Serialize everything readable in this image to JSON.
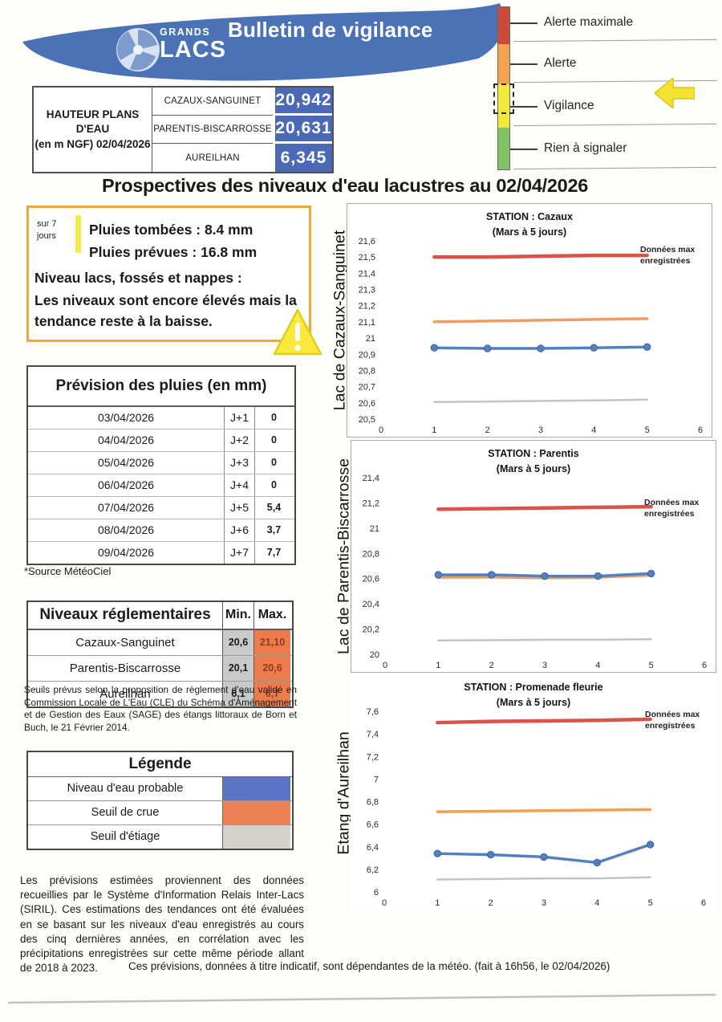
{
  "header": {
    "logo_line1": "GRANDS",
    "logo_line2": "LACS",
    "title": "Bulletin de vigilance"
  },
  "alert_scale": {
    "levels": [
      {
        "label": "Alerte maximale",
        "color": "#cf4938"
      },
      {
        "label": "Alerte",
        "color": "#f2a44e"
      },
      {
        "label": "Vigilance",
        "color": "#f2e83c"
      },
      {
        "label": "Rien à signaler",
        "color": "#82c164"
      }
    ],
    "current_level": "Vigilance",
    "arrow_color": "#f6e232"
  },
  "water_levels": {
    "header_line1": "HAUTEUR PLANS D'EAU",
    "header_line2": "(en m NGF) 02/04/2026",
    "value_bg_color": "#4b69b5",
    "rows": [
      {
        "name": "CAZAUX-SANGUINET",
        "value": "20,942"
      },
      {
        "name": "PARENTIS-BISCARROSSE",
        "value": "20,631"
      },
      {
        "name": "AUREILHAN",
        "value": "6,345"
      }
    ]
  },
  "main_title": "Prospectives des niveaux d'eau lacustres au 02/04/2026",
  "summary_box": {
    "period_line1": "sur 7",
    "period_line2": "jours",
    "rain_fallen_label": "Pluies tombées :",
    "rain_fallen_value": "8.4 mm",
    "rain_forecast_label": "Pluies prévues :",
    "rain_forecast_value": "16.8 mm",
    "levels_label": "Niveau lacs, fossés et nappes :",
    "levels_text": "Les niveaux sont encore élevés mais la tendance reste à la baisse."
  },
  "rain_forecast": {
    "title": "Prévision des pluies (en mm)",
    "rows": [
      {
        "date": "03/04/2026",
        "day": "J+1",
        "value": "0"
      },
      {
        "date": "04/04/2026",
        "day": "J+2",
        "value": "0"
      },
      {
        "date": "05/04/2026",
        "day": "J+3",
        "value": "0"
      },
      {
        "date": "06/04/2026",
        "day": "J+4",
        "value": "0"
      },
      {
        "date": "07/04/2026",
        "day": "J+5",
        "value": "5,4"
      },
      {
        "date": "08/04/2026",
        "day": "J+6",
        "value": "3,7"
      },
      {
        "date": "09/04/2026",
        "day": "J+7",
        "value": "7,7"
      }
    ],
    "source": "*Source MétéoCiel"
  },
  "regulatory_levels": {
    "title": "Niveaux réglementaires",
    "col_min": "Min.",
    "col_max": "Max.",
    "min_bg_color": "#c9c9c9",
    "max_bg_color": "#ec7c4b",
    "rows": [
      {
        "name": "Cazaux-Sanguinet",
        "min": "20,6",
        "max": "21,10"
      },
      {
        "name": "Parentis-Biscarrosse",
        "min": "20,1",
        "max": "20,6"
      },
      {
        "name": "Aureilhan",
        "min": "6,1",
        "max": "6,7"
      }
    ],
    "note": "Seuils prévus selon la proposition de règlement d'eau validé en Commission Locale de L'Eau (CLE) du Schéma d'Aménagement et de Gestion des Eaux (SAGE) des étangs littoraux de Born et Buch, le 21 Février 2014."
  },
  "legend": {
    "title": "Légende",
    "items": [
      {
        "label": "Niveau d'eau probable",
        "color": "#5b74c6"
      },
      {
        "label": "Seuil de crue",
        "color": "#ee8055"
      },
      {
        "label": "Seuil d'étiage",
        "color": "#d4d1cb"
      }
    ]
  },
  "info_paragraph": "Les prévisions estimées proviennent des données recueillies par le Système d'Information Relais Inter-Lacs (SIRIL). Ces estimations des tendances ont été évaluées en se basant sur les niveaux d'eau enregistrés au cours des cinq dernières années, en corrélation avec les précipitations enregistrées sur cette même période allant de 2018 à 2023.",
  "footer_note": "Ces prévisions, données à titre indicatif, sont dépendantes de la météo. (fait à 16h56, le 02/04/2026)",
  "chart_data": [
    {
      "type": "line",
      "axis_label": "Lac de Cazaux-Sanguinet",
      "title": "STATION : Cazaux",
      "subtitle": "(Mars à 5 jours)",
      "annotation_line1": "Données max",
      "annotation_line2": "enregistrées",
      "xmin": 0,
      "xmax": 6,
      "ymin": 20.5,
      "ymax": 21.6,
      "xtick_labels": [
        "0",
        "1",
        "2",
        "3",
        "4",
        "5",
        "6"
      ],
      "ytick_labels": [
        "21,6",
        "21,5",
        "21,4",
        "21,3",
        "21,2",
        "21,1",
        "21",
        "20,9",
        "20,8",
        "20,7",
        "20,6",
        "20,5"
      ],
      "series": [
        {
          "name": "Seuil d'étiage",
          "color": "#c4c4c4",
          "width": 2.5,
          "markers": false,
          "x": [
            1,
            2,
            3,
            4,
            5
          ],
          "y": [
            20.605,
            20.608,
            20.612,
            20.615,
            20.62
          ]
        },
        {
          "name": "Seuil de crue",
          "color": "#f09c60",
          "width": 3.5,
          "markers": false,
          "x": [
            1,
            2,
            3,
            4,
            5
          ],
          "y": [
            21.1,
            21.105,
            21.11,
            21.115,
            21.12
          ]
        },
        {
          "name": "Données max enregistrées",
          "color": "#d9534a",
          "width": 4.5,
          "markers": false,
          "x": [
            1,
            2,
            3,
            4,
            5
          ],
          "y": [
            21.5,
            21.5,
            21.505,
            21.51,
            21.51
          ]
        },
        {
          "name": "Niveau d'eau probable",
          "color": "#5580bd",
          "width": 3.5,
          "markers": true,
          "x": [
            1,
            2,
            3,
            4,
            5
          ],
          "y": [
            20.94,
            20.936,
            20.936,
            20.94,
            20.945
          ]
        }
      ]
    },
    {
      "type": "line",
      "axis_label": "Lac de Parentis-Biscarrosse",
      "title": "STATION : Parentis",
      "subtitle": "(Mars à 5 jours)",
      "annotation_line1": "Données max",
      "annotation_line2": "enregistrées",
      "xmin": 0,
      "xmax": 6,
      "ymin": 20,
      "ymax": 21.4,
      "xtick_labels": [
        "0",
        "1",
        "2",
        "3",
        "4",
        "5",
        "6"
      ],
      "ytick_labels": [
        "21,4",
        "21,2",
        "21",
        "20,8",
        "20,6",
        "20,4",
        "20,2",
        "20"
      ],
      "series": [
        {
          "name": "Seuil d'étiage",
          "color": "#c4c4c4",
          "width": 2.5,
          "markers": false,
          "x": [
            1,
            2,
            3,
            4,
            5
          ],
          "y": [
            20.11,
            20.112,
            20.115,
            20.115,
            20.12
          ]
        },
        {
          "name": "Seuil de crue",
          "color": "#f09c60",
          "width": 3.5,
          "markers": false,
          "x": [
            1,
            2,
            3,
            4,
            5
          ],
          "y": [
            20.61,
            20.612,
            20.606,
            20.61,
            20.628
          ]
        },
        {
          "name": "Données max enregistrées",
          "color": "#d9534a",
          "width": 4.5,
          "markers": false,
          "x": [
            1,
            2,
            3,
            4,
            5
          ],
          "y": [
            21.15,
            21.155,
            21.16,
            21.165,
            21.17
          ]
        },
        {
          "name": "Niveau d'eau probable",
          "color": "#5580bd",
          "width": 3.5,
          "markers": true,
          "x": [
            1,
            2,
            3,
            4,
            5
          ],
          "y": [
            20.63,
            20.63,
            20.62,
            20.62,
            20.64
          ]
        }
      ]
    },
    {
      "type": "line",
      "axis_label": "Etang d'Aureilhan",
      "title": "STATION : Promenade fleurie",
      "subtitle": "(Mars à 5 jours)",
      "annotation_line1": "Données max",
      "annotation_line2": "enregistrées",
      "xmin": 0,
      "xmax": 6,
      "ymin": 6,
      "ymax": 7.6,
      "xtick_labels": [
        "0",
        "1",
        "2",
        "3",
        "4",
        "5",
        "6"
      ],
      "ytick_labels": [
        "7,6",
        "7,4",
        "7,2",
        "7",
        "6,8",
        "6,6",
        "6,4",
        "6,2",
        "6"
      ],
      "series": [
        {
          "name": "Seuil d'étiage",
          "color": "#c4c4c4",
          "width": 2.5,
          "markers": false,
          "x": [
            1,
            2,
            3,
            4,
            5
          ],
          "y": [
            6.11,
            6.115,
            6.12,
            6.12,
            6.13
          ]
        },
        {
          "name": "Seuil de crue",
          "color": "#f0a050",
          "width": 3.5,
          "markers": false,
          "x": [
            1,
            2,
            3,
            4,
            5
          ],
          "y": [
            6.71,
            6.715,
            6.72,
            6.725,
            6.73
          ]
        },
        {
          "name": "Données max enregistrées",
          "color": "#d9534a",
          "width": 4.5,
          "markers": false,
          "x": [
            1,
            2,
            3,
            4,
            5
          ],
          "y": [
            7.5,
            7.51,
            7.515,
            7.52,
            7.53
          ]
        },
        {
          "name": "Niveau d'eau probable",
          "color": "#5580bd",
          "width": 3.5,
          "markers": true,
          "x": [
            1,
            2,
            3,
            4,
            5
          ],
          "y": [
            6.34,
            6.33,
            6.31,
            6.26,
            6.42
          ]
        }
      ]
    }
  ]
}
